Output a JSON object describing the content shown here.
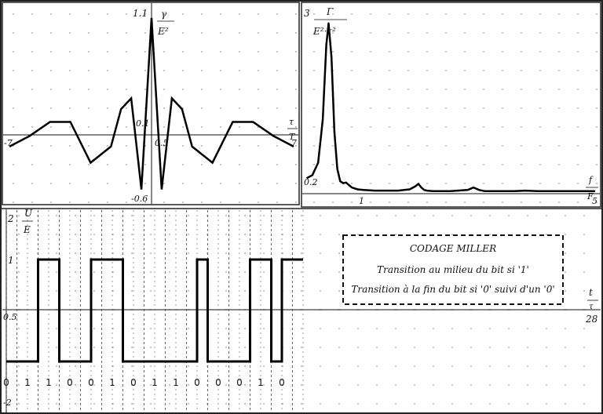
{
  "chart_data": [
    {
      "type": "line",
      "ylabel": {
        "num": "γ",
        "den": "E²"
      },
      "xlabel": {
        "num": "τ",
        "den": "T"
      },
      "x_tick_labels": [
        "-7",
        "7"
      ],
      "y_tick_labels": [
        "1.1",
        "0.1",
        "-0.6"
      ],
      "origin_label": "0.5",
      "xlim": [
        -7,
        7
      ],
      "ylim": [
        -0.7,
        1.15
      ],
      "grid": "dotted",
      "x": [
        -7,
        -6,
        -5,
        -4,
        -3,
        -2,
        -1.5,
        -1,
        -0.5,
        0,
        0.5,
        1,
        1.5,
        2,
        3,
        4,
        5,
        6,
        7
      ],
      "values": [
        -0.1,
        0,
        0.13,
        0.13,
        -0.25,
        -0.1,
        0.25,
        0.35,
        -0.5,
        1.1,
        -0.5,
        0.35,
        0.25,
        -0.1,
        -0.25,
        0.13,
        0.13,
        0,
        -0.1
      ]
    },
    {
      "type": "line",
      "ylabel": {
        "num": "Γ",
        "den": "E²·τ²"
      },
      "xlabel": {
        "num": "f",
        "den": "F"
      },
      "x_tick_labels": [
        "1",
        "5"
      ],
      "y_tick_labels": [
        "3",
        "0.2"
      ],
      "xlim": [
        0,
        5
      ],
      "ylim": [
        0,
        3
      ],
      "grid": "dotted",
      "x": [
        0.02,
        0.12,
        0.22,
        0.3,
        0.36,
        0.4,
        0.45,
        0.5,
        0.55,
        0.6,
        0.65,
        0.7,
        0.8,
        0.9,
        1.0,
        1.2,
        1.4,
        1.6,
        1.8,
        1.9,
        1.95,
        2.0,
        2.05,
        2.1,
        2.2,
        2.5,
        2.8,
        2.9,
        3.0,
        3.1,
        3.3,
        3.6,
        3.8,
        4.0,
        4.3,
        4.6,
        4.8,
        5.0
      ],
      "values": [
        0.25,
        0.3,
        0.5,
        1.2,
        2.4,
        2.75,
        2.2,
        1.0,
        0.4,
        0.2,
        0.17,
        0.18,
        0.1,
        0.07,
        0.06,
        0.05,
        0.05,
        0.05,
        0.07,
        0.12,
        0.16,
        0.1,
        0.06,
        0.05,
        0.04,
        0.04,
        0.06,
        0.1,
        0.06,
        0.04,
        0.04,
        0.04,
        0.05,
        0.04,
        0.04,
        0.04,
        0.04,
        0.04
      ]
    },
    {
      "type": "line",
      "ylabel": {
        "num": "U",
        "den": "E"
      },
      "xlabel": {
        "num": "t",
        "den": "τ"
      },
      "x_tick_labels": [
        "28"
      ],
      "y_tick_labels": [
        "2",
        "1",
        "-2"
      ],
      "origin_label": "0.5",
      "xlim": [
        0,
        28
      ],
      "ylim": [
        -2,
        2
      ],
      "bits": [
        "0",
        "1",
        "1",
        "0",
        "0",
        "1",
        "0",
        "1",
        "1",
        "0",
        "0",
        "0",
        "1",
        "0"
      ],
      "x": [
        0,
        3,
        3,
        5,
        5,
        8,
        8,
        11,
        11,
        15,
        15,
        18,
        18,
        19,
        19,
        22,
        22,
        23,
        23,
        25,
        25,
        26,
        26,
        28
      ],
      "values": [
        -1,
        -1,
        1,
        1,
        -1,
        -1,
        1,
        1,
        -1,
        -1,
        -1,
        -1,
        1,
        1,
        -1,
        -1,
        -1,
        -1,
        1,
        1,
        -1,
        -1,
        1,
        1
      ]
    }
  ],
  "legend_box": {
    "title": "CODAGE MILLER",
    "line1": "Transition au milieu du bit si '1'",
    "line2": "Transition à la fin du bit si '0' suivi d'un '0'"
  }
}
